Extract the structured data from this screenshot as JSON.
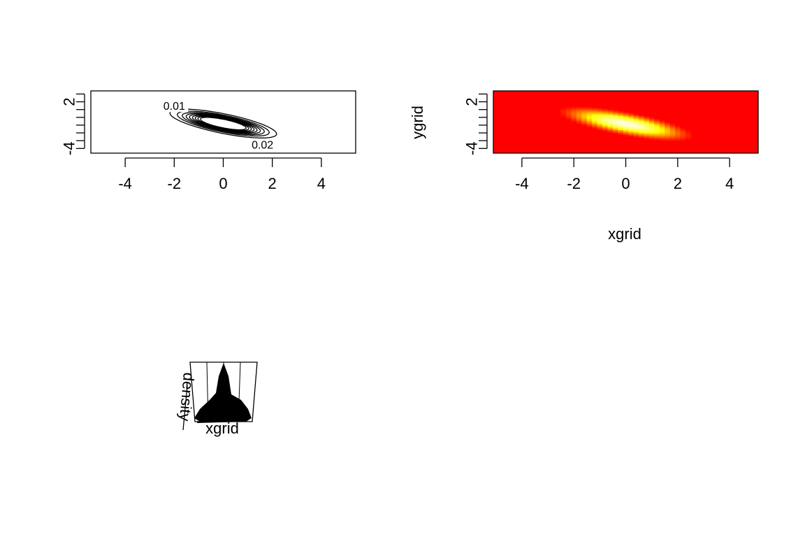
{
  "chart_data": [
    {
      "type": "contour",
      "title": "",
      "xlabel": "",
      "ylabel": "",
      "xlim": [
        -5.4,
        5.4
      ],
      "ylim": [
        -4.6,
        3.4
      ],
      "x_ticks": [
        -4,
        -2,
        0,
        2,
        4
      ],
      "x_tick_labels": [
        "-4",
        "-2",
        "0",
        "2",
        "4"
      ],
      "y_ticks": [
        -4,
        -3,
        -2,
        -1,
        0,
        1,
        2,
        3
      ],
      "y_tick_labels": [
        "-4",
        "",
        "",
        "",
        "",
        "",
        "2",
        ""
      ],
      "density": {
        "center": [
          0,
          -0.8
        ],
        "sd_x": 1.35,
        "sd_y": 1.15,
        "rho": -0.72
      },
      "levels": [
        0.01,
        0.02,
        0.03,
        0.04,
        0.05,
        0.06,
        0.07,
        0.08,
        0.09
      ],
      "contour_labels": [
        {
          "text": "0.01",
          "x": -2.0,
          "y": 1.4
        },
        {
          "text": "0.02",
          "x": 1.6,
          "y": -3.6
        }
      ]
    },
    {
      "type": "heatmap",
      "title": "",
      "xlabel": "xgrid",
      "ylabel": "ygrid",
      "xlim": [
        -5.1,
        5.1
      ],
      "ylim": [
        -4.6,
        3.4
      ],
      "x_ticks": [
        -4,
        -2,
        0,
        2,
        4
      ],
      "x_tick_labels": [
        "-4",
        "-2",
        "0",
        "2",
        "4"
      ],
      "y_ticks": [
        -4,
        -3,
        -2,
        -1,
        0,
        1,
        2,
        3
      ],
      "y_tick_labels": [
        "-4",
        "",
        "",
        "",
        "",
        "",
        "2",
        ""
      ],
      "grid_step": 0.2,
      "palette": [
        "#ff0000",
        "#ff8000",
        "#ffff00",
        "#ffffe0"
      ],
      "density": {
        "center": [
          0,
          -0.8
        ],
        "sd_x": 1.35,
        "sd_y": 1.15,
        "rho": -0.72
      }
    },
    {
      "type": "surface3d",
      "title": "",
      "xlabel": "xgrid",
      "ylabel": "",
      "zlabel": "density",
      "fill": "#000000",
      "box_color": "#000000"
    }
  ]
}
